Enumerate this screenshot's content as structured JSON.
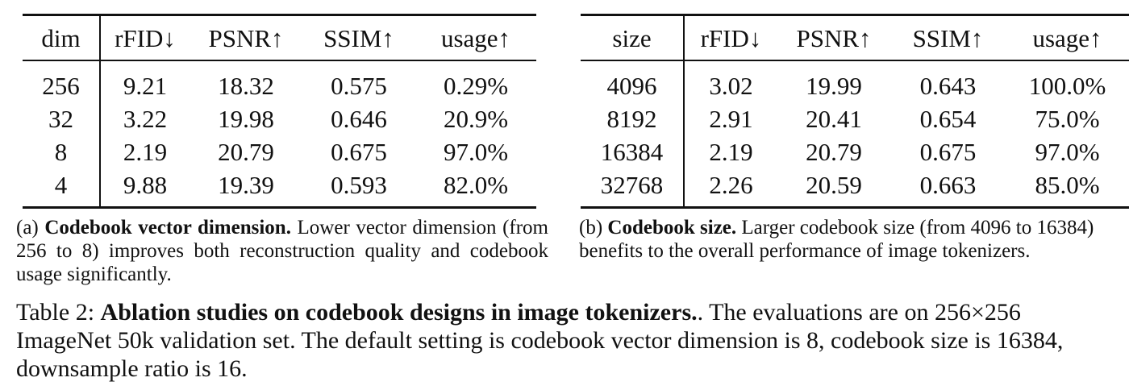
{
  "table_a": {
    "headers": [
      "dim",
      "rFID↓",
      "PSNR↑",
      "SSIM↑",
      "usage↑"
    ],
    "rows": [
      [
        "256",
        "9.21",
        "18.32",
        "0.575",
        "0.29%"
      ],
      [
        "32",
        "3.22",
        "19.98",
        "0.646",
        "20.9%"
      ],
      [
        "8",
        "2.19",
        "20.79",
        "0.675",
        "97.0%"
      ],
      [
        "4",
        "9.88",
        "19.39",
        "0.593",
        "82.0%"
      ]
    ]
  },
  "table_b": {
    "headers": [
      "size",
      "rFID↓",
      "PSNR↑",
      "SSIM↑",
      "usage↑"
    ],
    "rows": [
      [
        "4096",
        "3.02",
        "19.99",
        "0.643",
        "100.0%"
      ],
      [
        "8192",
        "2.91",
        "20.41",
        "0.654",
        "75.0%"
      ],
      [
        "16384",
        "2.19",
        "20.79",
        "0.675",
        "97.0%"
      ],
      [
        "32768",
        "2.26",
        "20.59",
        "0.663",
        "85.0%"
      ]
    ]
  },
  "caption_a": {
    "prefix": "(a)",
    "bold": "Codebook vector dimension.",
    "text": "Lower vector dimension (from 256 to 8) improves both reconstruction quality and codebook usage significantly."
  },
  "caption_b": {
    "prefix": "(b)",
    "bold": "Codebook size.",
    "text": "Larger codebook size (from 4096 to 16384) benefits to the overall performance of image tokenizers."
  },
  "main_caption": {
    "label": "Table 2:",
    "bold": "Ablation studies on codebook designs in image tokenizers.",
    "text": ". The evaluations are on 256×256 ImageNet 50k validation set. The default setting is codebook vector dimension is 8, codebook size is 16384, downsample ratio is 16."
  }
}
